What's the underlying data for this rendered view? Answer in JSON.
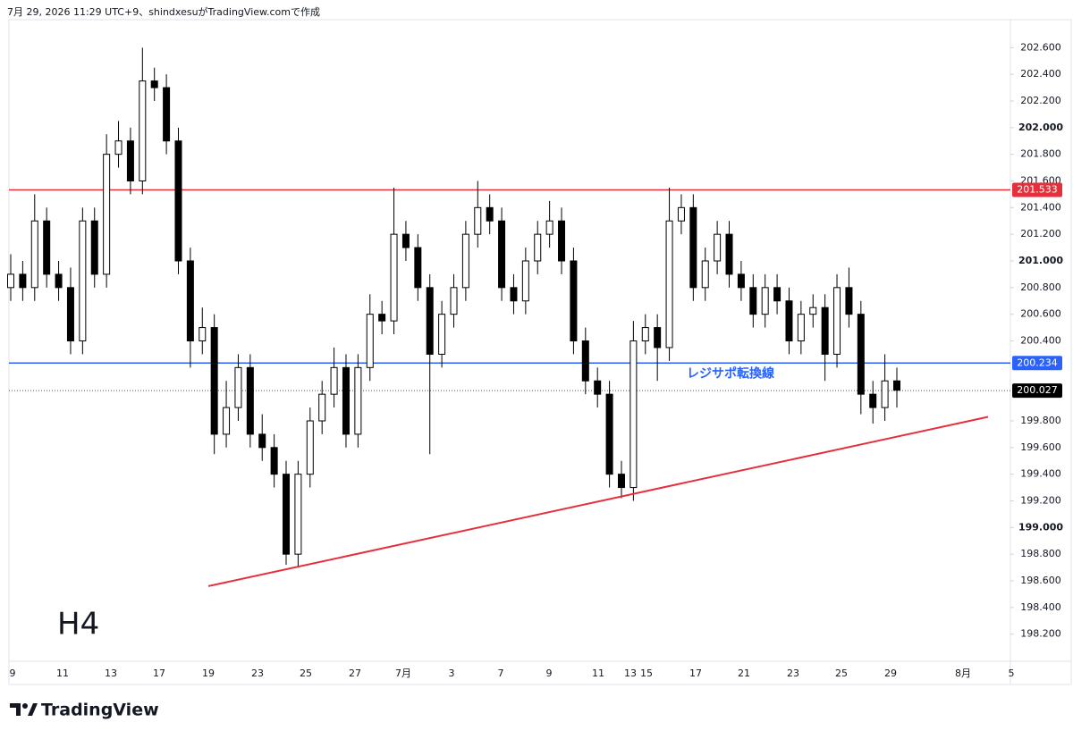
{
  "header": "7月 29, 2026 11:29 UTC+9、shindxesuがTradingView.comで作成",
  "brand": "TradingView",
  "chart_data": {
    "type": "candlestick",
    "timeframe_label": "H4",
    "up_color": "#ffffff",
    "down_color": "#000000",
    "open": [
      200.8,
      200.9,
      200.8,
      201.3,
      200.9,
      200.8,
      200.4,
      201.3,
      200.9,
      201.8,
      201.9,
      201.6,
      202.35,
      202.3,
      201.9,
      201.0,
      200.4,
      200.5,
      199.7,
      199.9,
      200.2,
      199.7,
      199.6,
      199.4,
      198.8,
      199.4,
      199.8,
      200.0,
      200.2,
      199.7,
      200.2,
      200.6,
      200.55,
      201.2,
      201.1,
      200.8,
      200.3,
      200.6,
      200.8,
      201.2,
      201.4,
      201.3,
      200.8,
      200.7,
      201.0,
      201.2,
      201.3,
      201.0,
      200.4,
      200.1,
      200.0,
      199.4,
      199.3,
      200.4,
      200.5,
      200.35,
      201.3,
      201.4,
      200.8,
      201.0,
      201.2,
      200.9,
      200.8,
      200.6,
      200.8,
      200.7,
      200.4,
      200.6,
      200.65,
      200.3,
      200.8,
      200.6,
      200.0,
      199.9,
      200.1
    ],
    "high": [
      201.05,
      201.0,
      201.5,
      201.4,
      201.0,
      200.95,
      201.4,
      201.4,
      201.95,
      202.05,
      202.0,
      202.6,
      202.45,
      202.4,
      202.0,
      201.1,
      200.65,
      200.6,
      200.1,
      200.3,
      200.3,
      199.85,
      199.7,
      199.5,
      199.5,
      199.9,
      200.1,
      200.35,
      200.3,
      200.3,
      200.75,
      200.7,
      201.55,
      201.3,
      201.2,
      200.9,
      200.7,
      200.9,
      201.3,
      201.6,
      201.5,
      201.4,
      200.9,
      201.1,
      201.3,
      201.45,
      201.4,
      201.1,
      200.5,
      200.2,
      200.1,
      199.5,
      200.55,
      200.6,
      200.6,
      201.55,
      201.5,
      201.5,
      201.1,
      201.3,
      201.3,
      201.0,
      200.9,
      200.9,
      200.9,
      200.8,
      200.7,
      200.75,
      200.75,
      200.9,
      200.95,
      200.7,
      200.1,
      200.3,
      200.2
    ],
    "low": [
      200.7,
      200.7,
      200.7,
      200.8,
      200.7,
      200.3,
      200.3,
      200.8,
      200.8,
      201.7,
      201.5,
      201.5,
      202.2,
      201.8,
      200.9,
      200.2,
      200.3,
      199.55,
      199.6,
      199.8,
      199.6,
      199.5,
      199.3,
      198.72,
      198.7,
      199.3,
      199.7,
      199.9,
      199.6,
      199.6,
      200.1,
      200.45,
      200.45,
      201.0,
      200.7,
      199.55,
      200.2,
      200.5,
      200.7,
      201.1,
      201.2,
      200.7,
      200.6,
      200.6,
      200.9,
      201.1,
      200.9,
      200.3,
      200.0,
      199.9,
      199.3,
      199.22,
      199.2,
      200.3,
      200.1,
      200.25,
      201.2,
      200.7,
      200.7,
      200.9,
      200.8,
      200.7,
      200.5,
      200.5,
      200.6,
      200.3,
      200.3,
      200.5,
      200.1,
      200.2,
      200.5,
      199.85,
      199.78,
      199.8,
      199.9
    ],
    "close": [
      200.9,
      200.8,
      201.3,
      200.9,
      200.8,
      200.4,
      201.3,
      200.9,
      201.8,
      201.9,
      201.6,
      202.35,
      202.3,
      201.9,
      201.0,
      200.4,
      200.5,
      199.7,
      199.9,
      200.2,
      199.7,
      199.6,
      199.4,
      198.8,
      199.4,
      199.8,
      200.0,
      200.2,
      199.7,
      200.2,
      200.6,
      200.55,
      201.2,
      201.1,
      200.8,
      200.3,
      200.6,
      200.8,
      201.2,
      201.4,
      201.3,
      200.8,
      200.7,
      201.0,
      201.2,
      201.3,
      201.0,
      200.4,
      200.1,
      200.0,
      199.4,
      199.3,
      200.4,
      200.5,
      200.35,
      201.3,
      201.4,
      200.8,
      201.0,
      201.2,
      200.9,
      200.8,
      200.6,
      200.8,
      200.7,
      200.4,
      200.6,
      200.65,
      200.3,
      200.8,
      200.6,
      200.0,
      199.9,
      200.1,
      200.03
    ],
    "xticks": [
      "9",
      "11",
      "13",
      "17",
      "19",
      "23",
      "25",
      "27",
      "7月",
      "3",
      "7",
      "9",
      "11",
      "13",
      "15",
      "17",
      "21",
      "23",
      "25",
      "29",
      "8月",
      "5"
    ],
    "ylim": [
      198.01,
      202.81
    ],
    "yticks": [
      {
        "value": 198.2,
        "label": "198.200"
      },
      {
        "value": 198.4,
        "label": "198.400"
      },
      {
        "value": 198.6,
        "label": "198.600"
      },
      {
        "value": 198.8,
        "label": "198.800"
      },
      {
        "value": 199,
        "label": "199.000"
      },
      {
        "value": 199.2,
        "label": "199.200"
      },
      {
        "value": 199.4,
        "label": "199.400"
      },
      {
        "value": 199.6,
        "label": "199.600"
      },
      {
        "value": 199.8,
        "label": "199.800"
      },
      {
        "value": 200.4,
        "label": "200.400"
      },
      {
        "value": 200.6,
        "label": "200.600"
      },
      {
        "value": 200.8,
        "label": "200.800"
      },
      {
        "value": 201,
        "label": "201.000"
      },
      {
        "value": 201.2,
        "label": "201.200"
      },
      {
        "value": 201.4,
        "label": "201.400"
      },
      {
        "value": 201.6,
        "label": "201.600"
      },
      {
        "value": 201.8,
        "label": "201.800"
      },
      {
        "value": 202,
        "label": "202.000"
      },
      {
        "value": 202.2,
        "label": "202.200"
      },
      {
        "value": 202.4,
        "label": "202.400"
      },
      {
        "value": 202.6,
        "label": "202.600"
      }
    ],
    "hlines": [
      {
        "value": 201.533,
        "color": "#e5303c"
      },
      {
        "value": 200.234,
        "color": "#2962ff",
        "annotation": "レジサポ転換線"
      }
    ],
    "last_price": 200.027,
    "trendline": {
      "color": "#e5303c",
      "start": 198.56,
      "end": 199.83
    }
  }
}
